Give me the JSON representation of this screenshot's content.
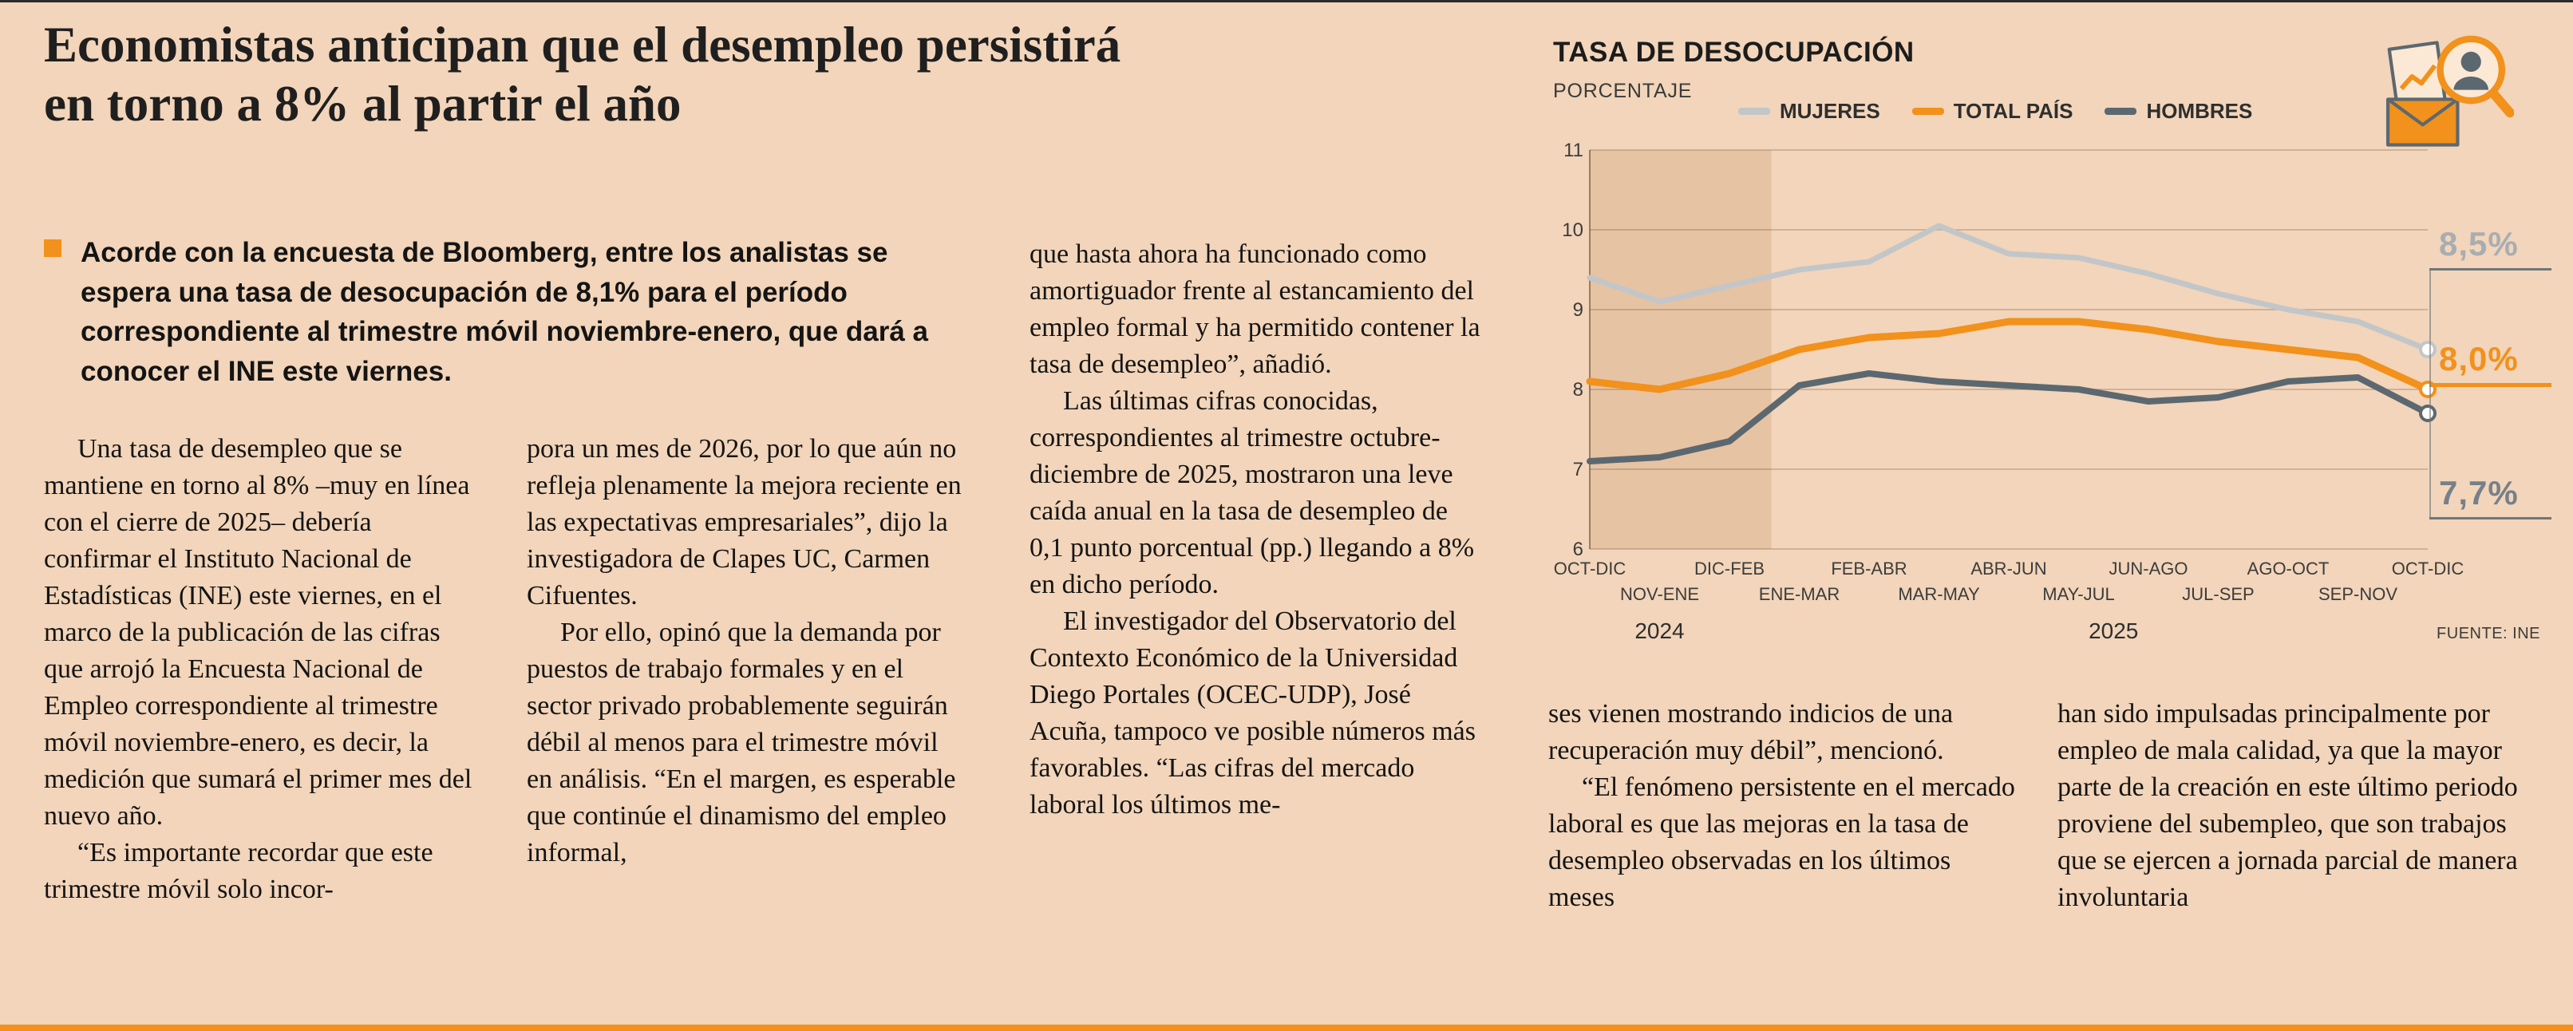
{
  "page": {
    "background": "#f2d5ba",
    "accent_orange": "#f2911b"
  },
  "article": {
    "headline": "Economistas anticipan que el desempleo persistirá en torno a 8% al partir el año",
    "headline_lines": [
      "Economistas anticipan que el desempleo persistirá",
      "en torno a 8% al partir el año"
    ],
    "lead": "Acorde con la encuesta de Bloomberg, entre los analistas se espera una tasa de desocupación de 8,1% para el período correspondiente al trimestre móvil noviembre-enero, que dará a conocer el INE este viernes.",
    "columns": [
      [
        "Una tasa de desempleo que se mantiene en torno al 8% –muy en línea con el cierre de 2025– debería confirmar el Instituto Nacional de Estadísticas (INE) este viernes, en el marco de la publicación de las cifras que arrojó la Encuesta Nacional de Empleo correspondiente al trimestre móvil noviembre-enero, es decir, la medición que sumará el primer mes del nuevo año.",
        "“Es importante recordar que este trimestre móvil solo incor-"
      ],
      [
        "pora un mes de 2026, por lo que aún no refleja plenamente la mejora reciente en las expectativas empresariales”, dijo la investigadora de Clapes UC, Carmen Cifuentes.",
        "Por ello, opinó que la demanda por puestos de trabajo formales y en el sector privado probablemente seguirán débil al menos para el trimestre móvil en análisis. “En el margen, es esperable que continúe el dinamismo del empleo informal,"
      ],
      [
        "que hasta ahora ha funcionado como amortiguador frente al estancamiento del empleo formal y ha permitido contener la tasa de desempleo”, añadió.",
        "Las últimas cifras conocidas, correspondientes al trimestre octubre-diciembre de 2025, mostraron una leve caída anual en la tasa de desempleo de 0,1 punto porcentual (pp.) llegando a 8% en dicho período.",
        "El investigador del Observatorio del Contexto Económico de la Universidad Diego Portales (OCEC-UDP), José Acuña, tampoco ve posible números más favorables. “Las cifras del mercado laboral los últimos me-"
      ],
      [
        "ses vienen mostrando indicios de una recuperación muy débil”, mencionó.",
        "“El fenómeno persistente en el mercado laboral es que las mejoras en la tasa de desempleo observadas en los últimos meses"
      ],
      [
        "han sido impulsadas principalmente por empleo de mala calidad, ya que la mayor parte de la creación en este último periodo proviene del subempleo, que son trabajos que se ejercen a jornada parcial de manera involuntaria"
      ]
    ]
  },
  "chart_data": {
    "type": "line",
    "title": "TASA DE DESOCUPACIÓN",
    "subtitle": "PORCENTAJE",
    "source": "FUENTE: INE",
    "categories": [
      "OCT-DIC",
      "NOV-ENE",
      "DIC-FEB",
      "ENE-MAR",
      "FEB-ABR",
      "MAR-MAY",
      "ABR-JUN",
      "MAY-JUL",
      "JUN-AGO",
      "JUL-SEP",
      "AGO-OCT",
      "SEP-NOV",
      "OCT-DIC"
    ],
    "years": [
      {
        "label": "2024",
        "index": 1
      },
      {
        "label": "2025",
        "index": 7.5
      }
    ],
    "ylim": [
      6,
      11
    ],
    "yticks": [
      6,
      7,
      8,
      9,
      10,
      11
    ],
    "grid": true,
    "legend_position": "top",
    "highlight_band": {
      "from_index": 0,
      "to_index": 2.6
    },
    "series": [
      {
        "name": "MUJERES",
        "color": "#c2c6c9",
        "label_color": "#a8adb1",
        "values": [
          9.4,
          9.1,
          9.3,
          9.5,
          9.6,
          10.05,
          9.7,
          9.65,
          9.45,
          9.2,
          9.0,
          8.85,
          8.5
        ],
        "end_label": "8,5%"
      },
      {
        "name": "TOTAL PAÍS",
        "color": "#f2911b",
        "label_color": "#f2911b",
        "values": [
          8.1,
          8.0,
          8.2,
          8.5,
          8.65,
          8.7,
          8.85,
          8.85,
          8.75,
          8.6,
          8.5,
          8.4,
          8.0
        ],
        "end_label": "8,0%"
      },
      {
        "name": "HOMBRES",
        "color": "#5c6870",
        "label_color": "#76808a",
        "values": [
          7.1,
          7.15,
          7.35,
          8.05,
          8.2,
          8.1,
          8.05,
          8.0,
          7.85,
          7.9,
          8.1,
          8.15,
          7.7
        ],
        "end_label": "7,7%"
      }
    ]
  }
}
